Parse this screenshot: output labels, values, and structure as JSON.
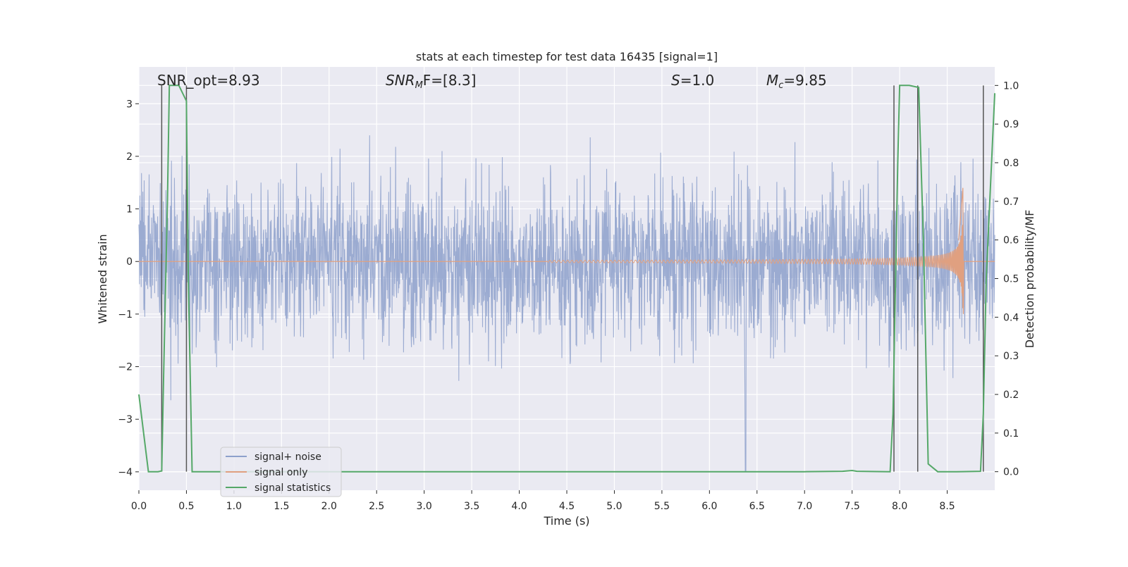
{
  "chart_data": {
    "type": "line",
    "title": "stats at each timestep for test data 16435 [signal=1]",
    "xlabel": "Time (s)",
    "ylabel": "Whitened strain",
    "y2label": "Detection probability/MF",
    "xlim": [
      0.0,
      9.0
    ],
    "ylim": [
      -4.35,
      3.7
    ],
    "y2lim": [
      -0.048,
      1.048
    ],
    "xticks": [
      "0.0",
      "0.5",
      "1.0",
      "1.5",
      "2.0",
      "2.5",
      "3.0",
      "3.5",
      "4.0",
      "4.5",
      "5.0",
      "5.5",
      "6.0",
      "6.5",
      "7.0",
      "7.5",
      "8.0",
      "8.5"
    ],
    "yticks": [
      "−4",
      "−3",
      "−2",
      "−1",
      "0",
      "1",
      "2",
      "3"
    ],
    "y2ticks": [
      "0.0",
      "0.1",
      "0.2",
      "0.3",
      "0.4",
      "0.5",
      "0.6",
      "0.7",
      "0.8",
      "0.9",
      "1.0"
    ],
    "grid": true,
    "legend_position": "lower-left",
    "annotations": {
      "snr_opt": "SNR_opt=8.93",
      "snr_mf_main": "SNR",
      "snr_mf_sub": "M",
      "snr_mf_rest": "F=[8.3]",
      "s_main": "S",
      "s_rest": "=1.0",
      "mc_main": "M",
      "mc_sub": "c",
      "mc_rest": "=9.85"
    },
    "series": [
      {
        "name": "signal+ noise",
        "axis": "left",
        "color": "#8da0cb",
        "envelope": {
          "typical_amplitude": 1.1,
          "peak_amplitude": 2.9,
          "min_value": -4.0,
          "min_at": 6.38
        }
      },
      {
        "name": "signal only",
        "axis": "left",
        "color": "#e0a080",
        "chirp": {
          "start": 4.3,
          "end": 8.67,
          "peak_amplitude": 1.4,
          "trough": -1.0
        }
      },
      {
        "name": "signal statistics",
        "axis": "right",
        "color": "#55a868",
        "x": [
          0.0,
          0.05,
          0.1,
          0.2,
          0.24,
          0.26,
          0.3,
          0.32,
          0.36,
          0.42,
          0.5,
          0.52,
          0.56,
          0.6,
          0.7,
          1.0,
          2.0,
          3.0,
          4.0,
          5.0,
          6.0,
          7.0,
          7.4,
          7.5,
          7.55,
          7.9,
          7.93,
          7.98,
          8.0,
          8.1,
          8.2,
          8.25,
          8.3,
          8.4,
          8.6,
          8.85,
          8.88,
          8.91,
          9.0
        ],
        "y": [
          0.2,
          0.1,
          0.0,
          0.0,
          0.002,
          0.25,
          0.7,
          1.0,
          1.0,
          1.0,
          0.96,
          0.5,
          0.0,
          0.0,
          0.0,
          0.0,
          0.0,
          0.0,
          0.0,
          0.0,
          0.0,
          0.0,
          0.001,
          0.003,
          0.001,
          0.0,
          0.15,
          0.8,
          1.0,
          1.0,
          0.995,
          0.6,
          0.02,
          0.0,
          0.0,
          0.001,
          0.15,
          0.5,
          0.98
        ]
      }
    ],
    "markers": {
      "color": "#555555",
      "x": [
        0.24,
        0.5,
        7.94,
        8.19,
        8.88
      ]
    }
  }
}
